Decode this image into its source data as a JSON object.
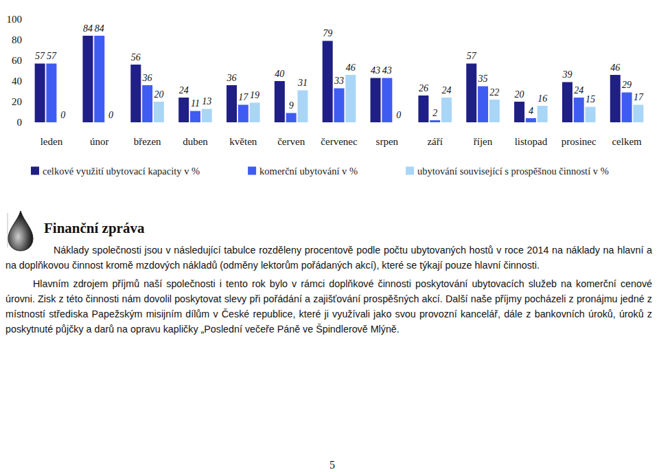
{
  "chart_data": {
    "type": "bar",
    "categories": [
      "leden",
      "únor",
      "březen",
      "duben",
      "květen",
      "červen",
      "červenec",
      "srpen",
      "září",
      "říjen",
      "listopad",
      "prosinec",
      "celkem"
    ],
    "series": [
      {
        "name": "celkové využití ubytovací kapacity v %",
        "color": "#1f1f86",
        "values": [
          57,
          84,
          56,
          24,
          36,
          40,
          79,
          43,
          26,
          57,
          20,
          39,
          46
        ]
      },
      {
        "name": "komerční ubytování v %",
        "color": "#3f5cf2",
        "values": [
          57,
          84,
          36,
          11,
          17,
          9,
          33,
          43,
          2,
          35,
          4,
          24,
          29
        ]
      },
      {
        "name": "ubytování související s prospěšnou činností v %",
        "color": "#a9d6f7",
        "values": [
          0,
          0,
          20,
          13,
          19,
          31,
          46,
          0,
          24,
          22,
          16,
          15,
          17
        ]
      }
    ],
    "ylim": [
      0,
      100
    ],
    "yticks": [
      0,
      20,
      40,
      60,
      80,
      100
    ],
    "grid": false,
    "data_labels": true,
    "legend": "bottom"
  },
  "document": {
    "heading": "Finanční zpráva",
    "paragraphs": [
      "Náklady společnosti jsou v následující tabulce rozděleny procentově podle počtu ubytovaných hostů v roce 2014 na náklady na hlavní a na doplňkovou činnost kromě mzdových nákladů (odměny lektorům pořádaných akcí), které se týkají pouze hlavní činnosti.",
      "Hlavním zdrojem příjmů naší společnosti i tento rok bylo v rámci doplňkové činnosti poskytování ubytovacích služeb na komerční cenové úrovni. Zisk z této činnosti nám dovolil poskytovat slevy při pořádání a zajišťování prospěšných akcí. Další naše příjmy pocházeli z pronájmu jedné z místností střediska Papežským misijním dílům v České republice, které ji využívali jako svou provozní kancelář, dále z bankovních úroků, úroků z poskytnuté půjčky a darů na opravu kapličky „Poslední večeře Páně ve Špindlerově Mlýně."
    ],
    "page_number": "5"
  }
}
